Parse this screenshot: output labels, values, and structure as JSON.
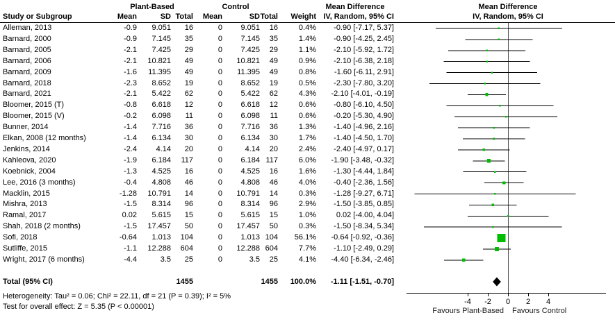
{
  "header": {
    "study_col": "Study or Subgroup",
    "group1": "Plant-Based",
    "group2": "Control",
    "sub_cols": [
      "Mean",
      "SD",
      "Total",
      "Mean",
      "SD",
      "Total"
    ],
    "weight_col": "Weight",
    "md_title": "Mean Difference",
    "md_sub": "IV, Random, 95% CI",
    "plot_title": "Mean Difference",
    "plot_sub": "IV, Random, 95% CI"
  },
  "chart_data": {
    "type": "forest",
    "effect_measure": "Mean Difference",
    "model": "IV, Random, 95% CI",
    "marker_color": "#00bd00",
    "diamond_color": "#000000",
    "studies": [
      {
        "study": "Alleman, 2013",
        "mean1": "-0.9",
        "sd1": "9.051",
        "total1": "16",
        "mean2": "0",
        "sd2": "9.051",
        "total2": "16",
        "weight": "0.4%",
        "weight_pct": 0.4,
        "ci_text": "-0.90 [-7.17, 5.37]",
        "est": -0.9,
        "lo": -7.17,
        "hi": 5.37
      },
      {
        "study": "Barnard, 2000",
        "mean1": "-0.9",
        "sd1": "7.145",
        "total1": "35",
        "mean2": "0",
        "sd2": "7.145",
        "total2": "35",
        "weight": "1.4%",
        "weight_pct": 1.4,
        "ci_text": "-0.90 [-4.25, 2.45]",
        "est": -0.9,
        "lo": -4.25,
        "hi": 2.45
      },
      {
        "study": "Barnard, 2005",
        "mean1": "-2.1",
        "sd1": "7.425",
        "total1": "29",
        "mean2": "0",
        "sd2": "7.425",
        "total2": "29",
        "weight": "1.1%",
        "weight_pct": 1.1,
        "ci_text": "-2.10 [-5.92, 1.72]",
        "est": -2.1,
        "lo": -5.92,
        "hi": 1.72
      },
      {
        "study": "Barnard, 2006",
        "mean1": "-2.1",
        "sd1": "10.821",
        "total1": "49",
        "mean2": "0",
        "sd2": "10.821",
        "total2": "49",
        "weight": "0.9%",
        "weight_pct": 0.9,
        "ci_text": "-2.10 [-6.38, 2.18]",
        "est": -2.1,
        "lo": -6.38,
        "hi": 2.18
      },
      {
        "study": "Barnard, 2009",
        "mean1": "-1.6",
        "sd1": "11.395",
        "total1": "49",
        "mean2": "0",
        "sd2": "11.395",
        "total2": "49",
        "weight": "0.8%",
        "weight_pct": 0.8,
        "ci_text": "-1.60 [-6.11, 2.91]",
        "est": -1.6,
        "lo": -6.11,
        "hi": 2.91
      },
      {
        "study": "Barnard, 2018",
        "mean1": "-2.3",
        "sd1": "8.652",
        "total1": "19",
        "mean2": "0",
        "sd2": "8.652",
        "total2": "19",
        "weight": "0.5%",
        "weight_pct": 0.5,
        "ci_text": "-2.30 [-7.80, 3.20]",
        "est": -2.3,
        "lo": -7.8,
        "hi": 3.2
      },
      {
        "study": "Barnard, 2021",
        "mean1": "-2.1",
        "sd1": "5.422",
        "total1": "62",
        "mean2": "0",
        "sd2": "5.422",
        "total2": "62",
        "weight": "4.3%",
        "weight_pct": 4.3,
        "ci_text": "-2.10 [-4.01, -0.19]",
        "est": -2.1,
        "lo": -4.01,
        "hi": -0.19
      },
      {
        "study": "Bloomer, 2015 (T)",
        "mean1": "-0.8",
        "sd1": "6.618",
        "total1": "12",
        "mean2": "0",
        "sd2": "6.618",
        "total2": "12",
        "weight": "0.6%",
        "weight_pct": 0.6,
        "ci_text": "-0.80 [-6.10, 4.50]",
        "est": -0.8,
        "lo": -6.1,
        "hi": 4.5
      },
      {
        "study": "Bloomer, 2015 (V)",
        "mean1": "-0.2",
        "sd1": "6.098",
        "total1": "11",
        "mean2": "0",
        "sd2": "6.098",
        "total2": "11",
        "weight": "0.6%",
        "weight_pct": 0.6,
        "ci_text": "-0.20 [-5.30, 4.90]",
        "est": -0.2,
        "lo": -5.3,
        "hi": 4.9
      },
      {
        "study": "Bunner, 2014",
        "mean1": "-1.4",
        "sd1": "7.716",
        "total1": "36",
        "mean2": "0",
        "sd2": "7.716",
        "total2": "36",
        "weight": "1.3%",
        "weight_pct": 1.3,
        "ci_text": "-1.40 [-4.96, 2.16]",
        "est": -1.4,
        "lo": -4.96,
        "hi": 2.16
      },
      {
        "study": "Elkan, 2008 (12 months)",
        "mean1": "-1.4",
        "sd1": "6.134",
        "total1": "30",
        "mean2": "0",
        "sd2": "6.134",
        "total2": "30",
        "weight": "1.7%",
        "weight_pct": 1.7,
        "ci_text": "-1.40 [-4.50, 1.70]",
        "est": -1.4,
        "lo": -4.5,
        "hi": 1.7
      },
      {
        "study": "Jenkins, 2014",
        "mean1": "-2.4",
        "sd1": "4.14",
        "total1": "20",
        "mean2": "0",
        "sd2": "4.14",
        "total2": "20",
        "weight": "2.4%",
        "weight_pct": 2.4,
        "ci_text": "-2.40 [-4.97, 0.17]",
        "est": -2.4,
        "lo": -4.97,
        "hi": 0.17
      },
      {
        "study": "Kahleova, 2020",
        "mean1": "-1.9",
        "sd1": "6.184",
        "total1": "117",
        "mean2": "0",
        "sd2": "6.184",
        "total2": "117",
        "weight": "6.0%",
        "weight_pct": 6.0,
        "ci_text": "-1.90 [-3.48, -0.32]",
        "est": -1.9,
        "lo": -3.48,
        "hi": -0.32
      },
      {
        "study": "Koebnick, 2004",
        "mean1": "-1.3",
        "sd1": "4.525",
        "total1": "16",
        "mean2": "0",
        "sd2": "4.525",
        "total2": "16",
        "weight": "1.6%",
        "weight_pct": 1.6,
        "ci_text": "-1.30 [-4.44, 1.84]",
        "est": -1.3,
        "lo": -4.44,
        "hi": 1.84
      },
      {
        "study": "Lee, 2016 (3 months)",
        "mean1": "-0.4",
        "sd1": "4.808",
        "total1": "46",
        "mean2": "0",
        "sd2": "4.808",
        "total2": "46",
        "weight": "4.0%",
        "weight_pct": 4.0,
        "ci_text": "-0.40 [-2.36, 1.56]",
        "est": -0.4,
        "lo": -2.36,
        "hi": 1.56
      },
      {
        "study": "Macklin, 2015",
        "mean1": "-1.28",
        "sd1": "10.791",
        "total1": "14",
        "mean2": "0",
        "sd2": "10.791",
        "total2": "14",
        "weight": "0.3%",
        "weight_pct": 0.3,
        "ci_text": "-1.28 [-9.27, 6.71]",
        "est": -1.28,
        "lo": -9.27,
        "hi": 6.71
      },
      {
        "study": "Mishra, 2013",
        "mean1": "-1.5",
        "sd1": "8.314",
        "total1": "96",
        "mean2": "0",
        "sd2": "8.314",
        "total2": "96",
        "weight": "2.9%",
        "weight_pct": 2.9,
        "ci_text": "-1.50 [-3.85, 0.85]",
        "est": -1.5,
        "lo": -3.85,
        "hi": 0.85
      },
      {
        "study": "Ramal, 2017",
        "mean1": "0.02",
        "sd1": "5.615",
        "total1": "15",
        "mean2": "0",
        "sd2": "5.615",
        "total2": "15",
        "weight": "1.0%",
        "weight_pct": 1.0,
        "ci_text": "0.02 [-4.00, 4.04]",
        "est": 0.02,
        "lo": -4.0,
        "hi": 4.04
      },
      {
        "study": "Shah, 2018 (2 months)",
        "mean1": "-1.5",
        "sd1": "17.457",
        "total1": "50",
        "mean2": "0",
        "sd2": "17.457",
        "total2": "50",
        "weight": "0.3%",
        "weight_pct": 0.3,
        "ci_text": "-1.50 [-8.34, 5.34]",
        "est": -1.5,
        "lo": -8.34,
        "hi": 5.34
      },
      {
        "study": "Sofi, 2018",
        "mean1": "-0.64",
        "sd1": "1.013",
        "total1": "104",
        "mean2": "0",
        "sd2": "1.013",
        "total2": "104",
        "weight": "56.1%",
        "weight_pct": 56.1,
        "ci_text": "-0.64 [-0.92, -0.36]",
        "est": -0.64,
        "lo": -0.92,
        "hi": -0.36
      },
      {
        "study": "Sutliffe, 2015",
        "mean1": "-1.1",
        "sd1": "12.288",
        "total1": "604",
        "mean2": "0",
        "sd2": "12.288",
        "total2": "604",
        "weight": "7.7%",
        "weight_pct": 7.7,
        "ci_text": "-1.10 [-2.49, 0.29]",
        "est": -1.1,
        "lo": -2.49,
        "hi": 0.29
      },
      {
        "study": "Wright, 2017 (6 months)",
        "mean1": "-4.4",
        "sd1": "3.5",
        "total1": "25",
        "mean2": "0",
        "sd2": "3.5",
        "total2": "25",
        "weight": "4.1%",
        "weight_pct": 4.1,
        "ci_text": "-4.40 [-6.34, -2.46]",
        "est": -4.4,
        "lo": -6.34,
        "hi": -2.46
      }
    ],
    "total": {
      "label": "Total (95% CI)",
      "total1": "1455",
      "total2": "1455",
      "weight": "100.0%",
      "ci_text": "-1.11 [-1.51, -0.70]",
      "est": -1.11,
      "lo": -1.51,
      "hi": -0.7
    },
    "axis": {
      "ticks": [
        -4,
        -2,
        0,
        2,
        4
      ],
      "min": -10,
      "max": 9.7,
      "left_label": "Favours Plant-Based",
      "right_label": "Favours Control"
    }
  },
  "footer": {
    "heterogeneity": "Heterogeneity: Tau² = 0.06; Chi² = 22.11, df = 21 (P = 0.39); I² = 5%",
    "overall_effect": "Test for overall effect: Z = 5.35 (P < 0.00001)"
  }
}
